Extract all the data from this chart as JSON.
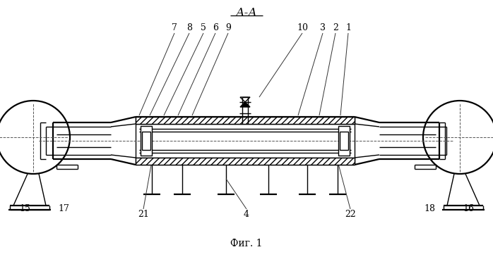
{
  "title": "А-А",
  "caption": "Фиг. 1",
  "bg_color": "#ffffff",
  "line_color": "#000000"
}
